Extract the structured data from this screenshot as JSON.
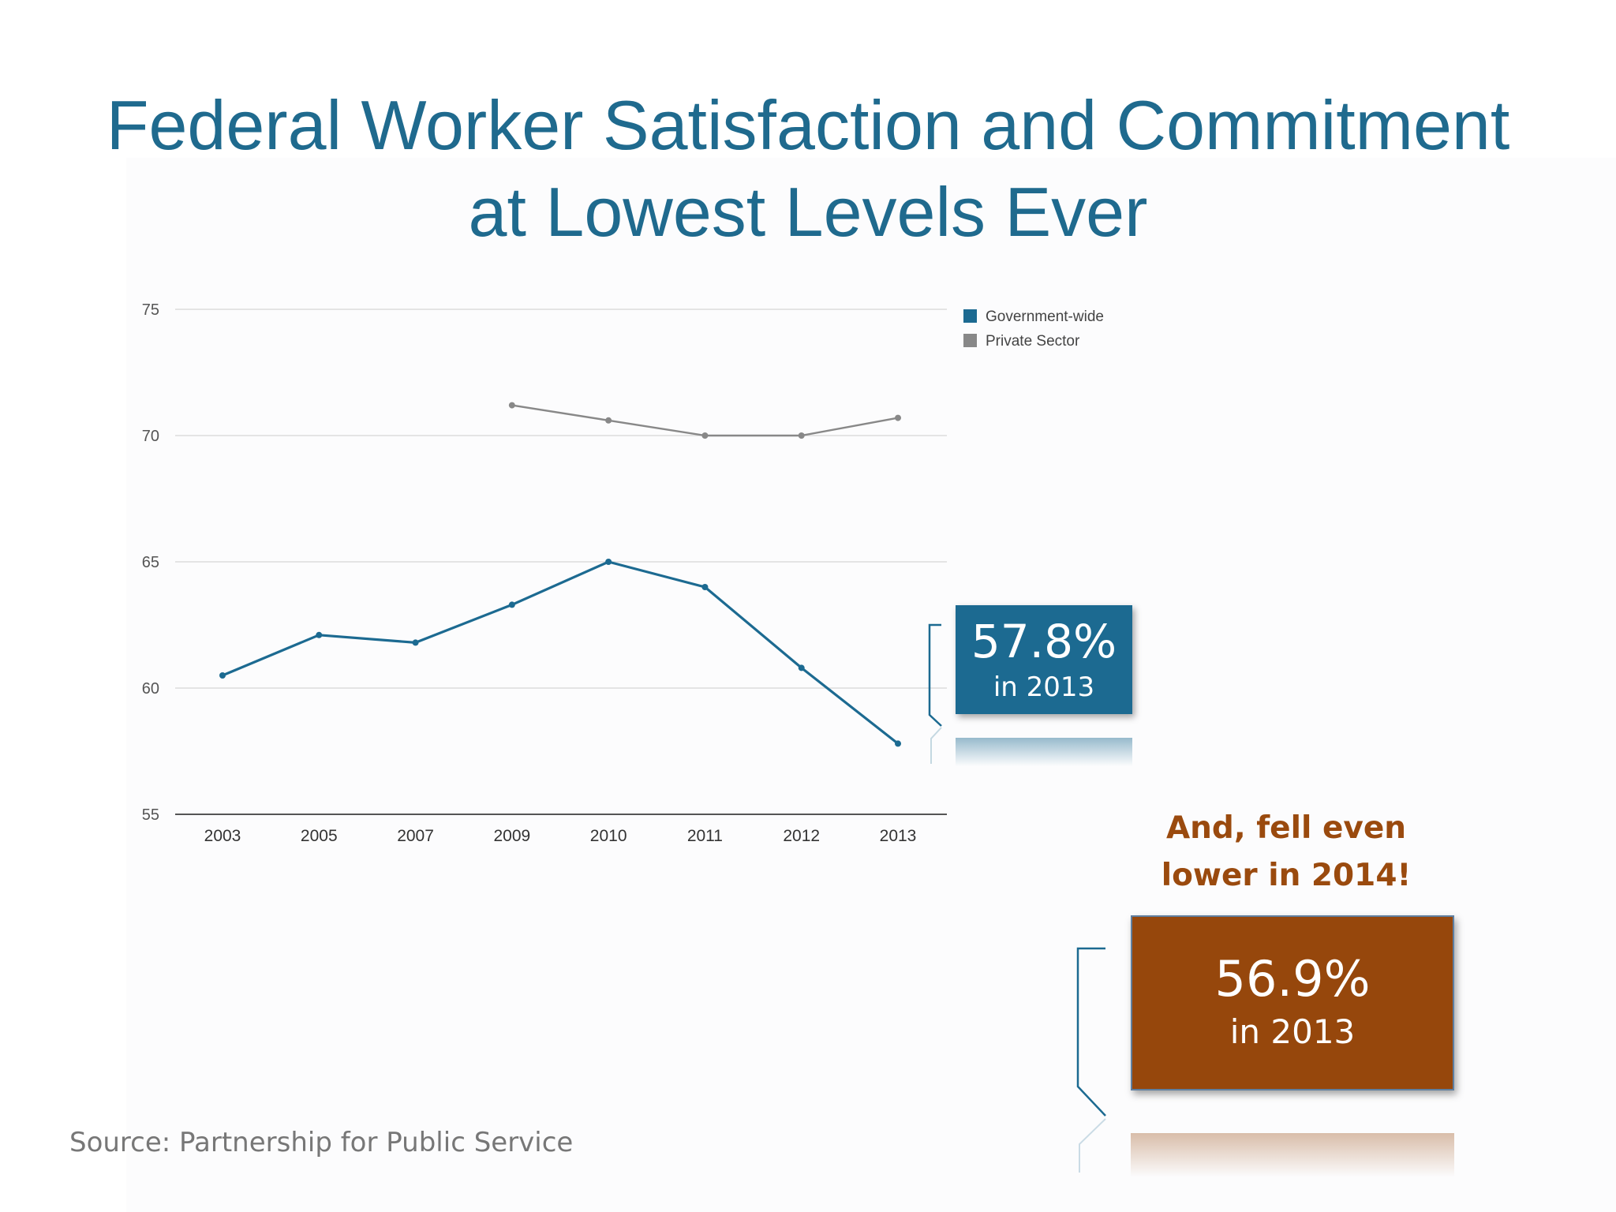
{
  "slide": {
    "title_line1": "Federal Worker Satisfaction and Commitment",
    "title_line2": "at Lowest Levels Ever",
    "source": "Source: Partnership for Public Service"
  },
  "callouts": {
    "blue": {
      "value": "57.8%",
      "caption": "in 2013"
    },
    "note_line1": "And, fell even",
    "note_line2": "lower in 2014!",
    "brown": {
      "value": "56.9%",
      "caption": "in 2013"
    }
  },
  "chart_data": {
    "type": "line",
    "title": "",
    "xlabel": "",
    "ylabel": "",
    "categories": [
      "2003",
      "2005",
      "2007",
      "2009",
      "2010",
      "2011",
      "2012",
      "2013"
    ],
    "yticks": [
      55,
      60,
      65,
      70,
      75
    ],
    "ylim": [
      55,
      75
    ],
    "grid": true,
    "legend_position": "top-right",
    "series": [
      {
        "name": "Government-wide",
        "color": "#1c6a91",
        "values": [
          60.5,
          62.1,
          61.8,
          63.3,
          65.0,
          64.0,
          60.8,
          57.8
        ]
      },
      {
        "name": "Private Sector",
        "color": "#888888",
        "values": [
          null,
          null,
          null,
          71.2,
          70.6,
          70.0,
          70.0,
          70.7
        ]
      }
    ]
  }
}
